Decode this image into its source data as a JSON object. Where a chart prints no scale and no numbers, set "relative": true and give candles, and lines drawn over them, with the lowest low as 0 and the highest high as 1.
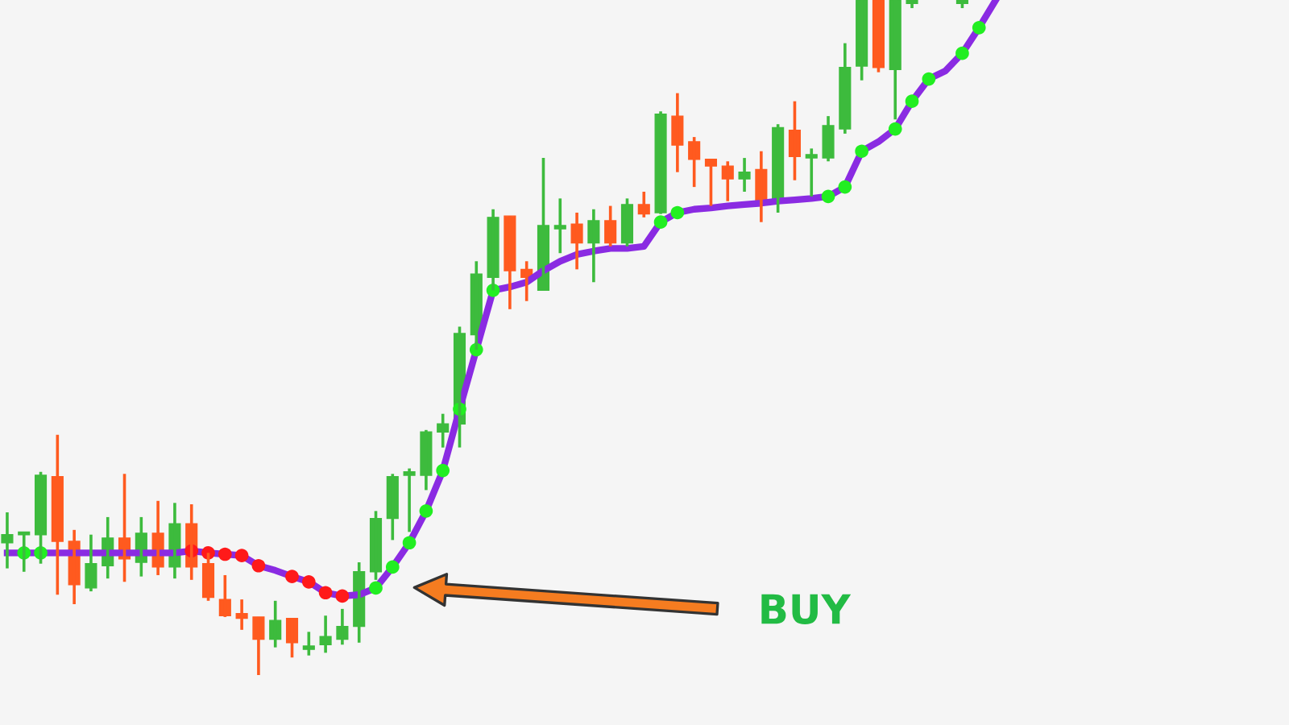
{
  "chart_data": {
    "type": "candlestick",
    "relative": true,
    "categories": [
      null,
      null,
      null,
      null,
      null,
      null,
      null,
      null,
      null,
      null,
      null,
      null,
      null,
      null,
      null,
      null,
      null,
      null,
      null,
      null,
      null,
      null,
      null,
      null,
      null,
      null,
      null,
      null,
      null,
      null,
      null,
      null,
      null,
      null,
      null,
      null,
      null,
      null,
      null,
      null,
      null,
      null,
      null,
      null,
      null,
      null,
      null,
      null,
      null,
      null,
      null,
      null,
      null,
      null,
      null,
      null,
      null,
      null,
      null,
      null
    ],
    "ohlc": [
      [
        0.196,
        0.241,
        0.158,
        0.208
      ],
      [
        0.208,
        0.21,
        0.153,
        0.21
      ],
      [
        0.208,
        0.301,
        0.165,
        0.296
      ],
      [
        0.294,
        0.356,
        0.119,
        0.198
      ],
      [
        0.198,
        0.215,
        0.105,
        0.134
      ],
      [
        0.129,
        0.208,
        0.124,
        0.165
      ],
      [
        0.162,
        0.234,
        0.143,
        0.203
      ],
      [
        0.203,
        0.298,
        0.138,
        0.172
      ],
      [
        0.167,
        0.234,
        0.146,
        0.21
      ],
      [
        0.21,
        0.258,
        0.148,
        0.16
      ],
      [
        0.16,
        0.255,
        0.143,
        0.224
      ],
      [
        0.224,
        0.253,
        0.141,
        0.16
      ],
      [
        0.165,
        0.181,
        0.11,
        0.115
      ],
      [
        0.112,
        0.148,
        0.086,
        0.088
      ],
      [
        0.091,
        0.112,
        0.067,
        0.084
      ],
      [
        0.086,
        0.086,
        0,
        0.053
      ],
      [
        0.053,
        0.11,
        0.041,
        0.081
      ],
      [
        0.084,
        0.084,
        0.026,
        0.048
      ],
      [
        0.038,
        0.064,
        0.029,
        0.043
      ],
      [
        0.045,
        0.088,
        0.033,
        0.057
      ],
      [
        0.053,
        0.098,
        0.045,
        0.072
      ],
      [
        0.072,
        0.167,
        0.048,
        0.153
      ],
      [
        0.153,
        0.243,
        0.141,
        0.232
      ],
      [
        0.232,
        0.298,
        0.2,
        0.294
      ],
      [
        0.296,
        0.306,
        0.212,
        0.301
      ],
      [
        0.296,
        0.363,
        0.274,
        0.36
      ],
      [
        0.36,
        0.387,
        0.337,
        0.372
      ],
      [
        0.372,
        0.516,
        0.337,
        0.506
      ],
      [
        0.504,
        0.613,
        0.482,
        0.594
      ],
      [
        0.589,
        0.69,
        0.57,
        0.678
      ],
      [
        0.68,
        0.68,
        0.542,
        0.599
      ],
      [
        0.601,
        0.613,
        0.554,
        0.589
      ],
      [
        0.57,
        0.766,
        0.57,
        0.666
      ],
      [
        0.661,
        0.706,
        0.625,
        0.666
      ],
      [
        0.668,
        0.685,
        0.601,
        0.64
      ],
      [
        0.64,
        0.69,
        0.582,
        0.673
      ],
      [
        0.673,
        0.695,
        0.635,
        0.64
      ],
      [
        0.64,
        0.706,
        0.635,
        0.697
      ],
      [
        0.697,
        0.716,
        0.678,
        0.683
      ],
      [
        0.685,
        0.835,
        0.683,
        0.831
      ],
      [
        0.828,
        0.862,
        0.745,
        0.785
      ],
      [
        0.79,
        0.797,
        0.723,
        0.764
      ],
      [
        0.764,
        0.764,
        0.695,
        0.754
      ],
      [
        0.754,
        0.761,
        0.702,
        0.735
      ],
      [
        0.735,
        0.766,
        0.716,
        0.745
      ],
      [
        0.749,
        0.776,
        0.671,
        0.702
      ],
      [
        0.702,
        0.816,
        0.685,
        0.811
      ],
      [
        0.807,
        0.85,
        0.733,
        0.768
      ],
      [
        0.766,
        0.78,
        0.709,
        0.771
      ],
      [
        0.766,
        0.828,
        0.761,
        0.814
      ],
      [
        0.809,
        0.936,
        0.802,
        0.9
      ],
      [
        0.902,
        1,
        0.881,
        1
      ],
      [
        1,
        1,
        0.893,
        0.9
      ],
      [
        0.897,
        1,
        0.823,
        1
      ],
      [
        0.995,
        1,
        0.988,
        1
      ],
      null,
      null,
      [
        0.995,
        1,
        0.988,
        1
      ],
      null,
      null
    ],
    "colors": [
      "#3dbb3d",
      "#3dbb3d",
      "#3dbb3d",
      "#ff5a1f",
      "#ff5a1f",
      "#3dbb3d",
      "#3dbb3d",
      "#ff5a1f",
      "#3dbb3d",
      "#ff5a1f",
      "#3dbb3d",
      "#ff5a1f",
      "#ff5a1f",
      "#ff5a1f",
      "#ff5a1f",
      "#ff5a1f",
      "#3dbb3d",
      "#ff5a1f",
      "#3dbb3d",
      "#3dbb3d",
      "#3dbb3d",
      "#3dbb3d",
      "#3dbb3d",
      "#3dbb3d",
      "#3dbb3d",
      "#3dbb3d",
      "#3dbb3d",
      "#3dbb3d",
      "#3dbb3d",
      "#3dbb3d",
      "#ff5a1f",
      "#ff5a1f",
      "#3dbb3d",
      "#3dbb3d",
      "#ff5a1f",
      "#3dbb3d",
      "#ff5a1f",
      "#3dbb3d",
      "#ff5a1f",
      "#3dbb3d",
      "#ff5a1f",
      "#ff5a1f",
      "#ff5a1f",
      "#ff5a1f",
      "#3dbb3d",
      "#ff5a1f",
      "#3dbb3d",
      "#ff5a1f",
      "#3dbb3d",
      "#3dbb3d",
      "#3dbb3d",
      "#3dbb3d",
      "#ff5a1f",
      "#3dbb3d",
      "#3dbb3d",
      null,
      null,
      "#3dbb3d",
      null,
      null
    ],
    "series": [
      {
        "type": "line",
        "color": "#8a2be2",
        "marker": "none",
        "values": [
          0.181,
          0.181,
          0.181,
          0.181,
          0.181,
          0.181,
          0.181,
          0.181,
          0.181,
          0.181,
          0.181,
          0.184,
          0.181,
          0.179,
          0.177,
          0.162,
          0.155,
          0.146,
          0.138,
          0.122,
          0.117,
          0.119,
          0.129,
          0.16,
          0.196,
          0.243,
          0.303,
          0.394,
          0.482,
          0.57,
          0.575,
          0.582,
          0.599,
          0.613,
          0.623,
          0.628,
          0.632,
          0.632,
          0.635,
          0.671,
          0.685,
          0.69,
          0.692,
          0.695,
          0.697,
          0.699,
          0.702,
          0.704,
          0.706,
          0.709,
          0.723,
          0.776,
          0.79,
          0.809,
          0.85,
          0.883,
          0.895,
          0.921,
          0.959,
          1
        ]
      },
      {
        "type": "scatter",
        "color": "#22ee22",
        "marker": "circle",
        "values": [
          null,
          0.181,
          0.181,
          null,
          null,
          null,
          null,
          null,
          null,
          null,
          null,
          null,
          null,
          null,
          null,
          null,
          null,
          null,
          null,
          null,
          null,
          null,
          0.129,
          0.16,
          0.196,
          0.243,
          0.303,
          0.394,
          0.482,
          0.57,
          null,
          null,
          null,
          null,
          null,
          null,
          null,
          null,
          null,
          0.671,
          0.685,
          null,
          null,
          null,
          null,
          null,
          null,
          null,
          null,
          0.709,
          0.723,
          0.776,
          null,
          0.809,
          0.85,
          0.883,
          null,
          0.921,
          0.959,
          null
        ]
      },
      {
        "type": "scatter",
        "color": "#ff1a1a",
        "marker": "circle",
        "values": [
          null,
          null,
          null,
          null,
          null,
          null,
          null,
          null,
          null,
          null,
          null,
          0.184,
          0.181,
          0.179,
          0.177,
          0.162,
          null,
          0.146,
          0.138,
          0.122,
          0.117,
          null,
          null,
          null,
          null,
          null,
          null,
          null,
          null,
          null,
          null,
          null,
          null,
          null,
          null,
          null,
          null,
          null,
          null,
          null,
          null,
          null,
          null,
          null,
          null,
          null,
          null,
          null,
          null,
          null,
          null,
          null,
          null,
          null,
          null,
          null,
          null,
          null,
          null,
          null
        ]
      }
    ],
    "annotations": [
      "BUY"
    ]
  }
}
